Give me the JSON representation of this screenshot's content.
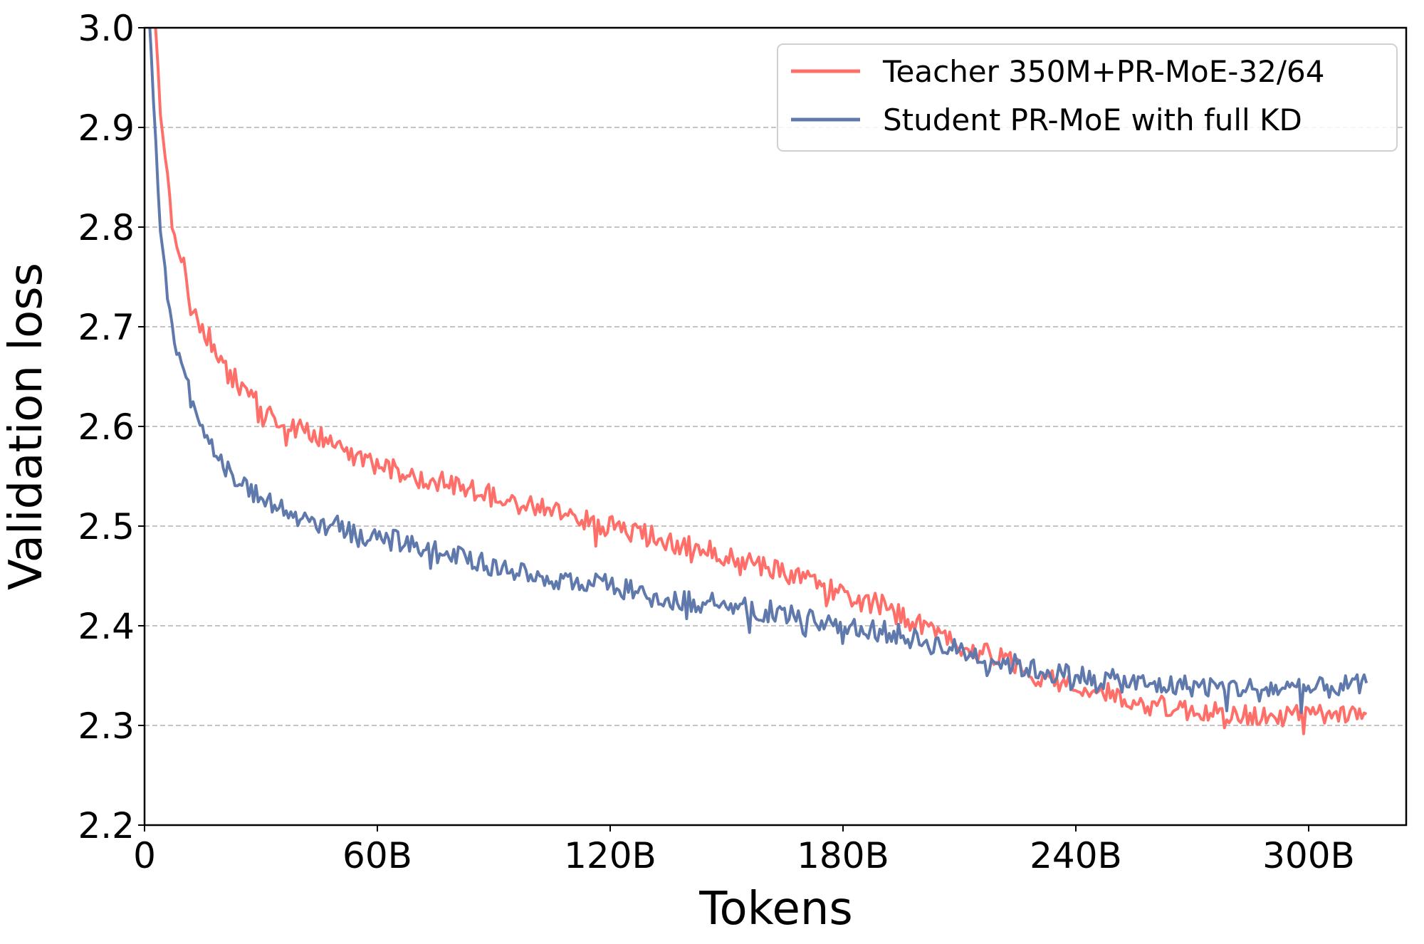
{
  "chart_data": {
    "type": "line",
    "title": "",
    "xlabel": "Tokens",
    "ylabel": "Validation loss",
    "xlim": [
      0,
      325
    ],
    "ylim": [
      2.2,
      3.0
    ],
    "x_unit": "B tokens",
    "x_ticks": [
      0,
      60,
      120,
      180,
      240,
      300
    ],
    "x_tick_labels": [
      "0",
      "60B",
      "120B",
      "180B",
      "240B",
      "300B"
    ],
    "y_ticks": [
      2.2,
      2.3,
      2.4,
      2.5,
      2.6,
      2.7,
      2.8,
      2.9,
      3.0
    ],
    "y_tick_labels": [
      "2.2",
      "2.3",
      "2.4",
      "2.5",
      "2.6",
      "2.7",
      "2.8",
      "2.9",
      "3.0"
    ],
    "grid": {
      "y": true,
      "x": false,
      "style": "dashed"
    },
    "legend_position": "upper right",
    "x": [
      2,
      4,
      6,
      8,
      10,
      12,
      15,
      18,
      20,
      25,
      30,
      35,
      40,
      45,
      50,
      55,
      60,
      70,
      80,
      90,
      100,
      110,
      120,
      130,
      140,
      150,
      160,
      170,
      180,
      190,
      200,
      210,
      220,
      230,
      240,
      250,
      260,
      270,
      280,
      290,
      300,
      310,
      315
    ],
    "series": [
      {
        "name": "Teacher 350M+PR-MoE-32/64",
        "color": "#ff6f69",
        "values": [
          3.05,
          2.92,
          2.85,
          2.78,
          2.76,
          2.72,
          2.7,
          2.68,
          2.66,
          2.64,
          2.62,
          2.6,
          2.6,
          2.59,
          2.58,
          2.57,
          2.56,
          2.55,
          2.54,
          2.53,
          2.52,
          2.51,
          2.5,
          2.49,
          2.48,
          2.47,
          2.46,
          2.45,
          2.43,
          2.42,
          2.4,
          2.38,
          2.37,
          2.35,
          2.34,
          2.33,
          2.32,
          2.315,
          2.31,
          2.31,
          2.31,
          2.31,
          2.31
        ]
      },
      {
        "name": "Student PR-MoE with full KD",
        "color": "#5f79ad",
        "values": [
          2.95,
          2.8,
          2.73,
          2.68,
          2.66,
          2.63,
          2.6,
          2.58,
          2.56,
          2.54,
          2.53,
          2.52,
          2.51,
          2.5,
          2.5,
          2.49,
          2.49,
          2.48,
          2.47,
          2.46,
          2.45,
          2.445,
          2.44,
          2.43,
          2.425,
          2.42,
          2.415,
          2.41,
          2.4,
          2.395,
          2.385,
          2.375,
          2.365,
          2.355,
          2.35,
          2.345,
          2.34,
          2.34,
          2.338,
          2.337,
          2.336,
          2.34,
          2.34
        ]
      }
    ]
  },
  "legend": {
    "items": [
      {
        "label": "Teacher 350M+PR-MoE-32/64",
        "color": "#ff6f69"
      },
      {
        "label": "Student PR-MoE with full KD",
        "color": "#5f79ad"
      }
    ]
  }
}
